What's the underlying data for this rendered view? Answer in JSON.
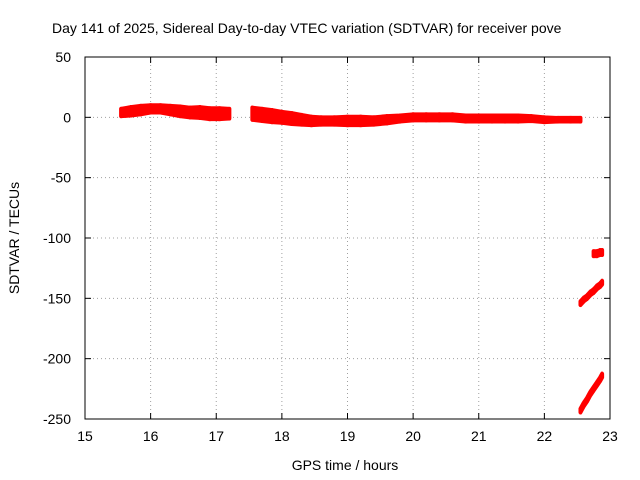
{
  "chart_data": {
    "type": "scatter",
    "title": "Day 141 of 2025, Sidereal Day-to-day VTEC variation (SDTVAR) for receiver pove",
    "xlabel": "GPS time / hours",
    "ylabel": "SDTVAR / TECUs",
    "xlim": [
      15,
      23
    ],
    "ylim": [
      -250,
      50
    ],
    "xticks": [
      15,
      16,
      17,
      18,
      19,
      20,
      21,
      22,
      23
    ],
    "yticks": [
      -250,
      -200,
      -150,
      -100,
      -50,
      0,
      50
    ],
    "grid": true,
    "legend": "none",
    "series_color": "#ff0000",
    "series": [
      {
        "x": [
          15.55,
          15.7,
          15.85,
          16.0,
          16.15,
          16.3,
          16.45,
          16.6,
          16.75,
          16.9,
          17.05,
          17.2
        ],
        "y": [
          4,
          5,
          6,
          7,
          7,
          6,
          5,
          4,
          4,
          3,
          3,
          3
        ],
        "spread": [
          6,
          7,
          7,
          6,
          6,
          7,
          8,
          8,
          9,
          9,
          9,
          8
        ]
      },
      {
        "x": [
          17.55,
          17.7,
          17.85,
          18.0,
          18.15,
          18.3,
          18.45,
          18.6,
          18.8,
          19.0,
          19.2,
          19.4,
          19.6,
          19.8,
          20.0,
          20.2,
          20.4,
          20.6,
          20.8,
          21.0,
          21.2,
          21.4,
          21.6,
          21.8,
          22.0,
          22.2,
          22.4,
          22.55
        ],
        "y": [
          3,
          2,
          1,
          0,
          -1,
          -2,
          -3,
          -3,
          -3,
          -3,
          -3,
          -3,
          -2,
          -1,
          0,
          0,
          0,
          0,
          -1,
          -1,
          -1,
          -1,
          -1,
          -1,
          -2,
          -2,
          -2,
          -2
        ],
        "spread": [
          10,
          10,
          10,
          9,
          9,
          8,
          7,
          6,
          6,
          7,
          7,
          6,
          6,
          5,
          5,
          5,
          5,
          5,
          5,
          5,
          5,
          5,
          5,
          4,
          4,
          3,
          3,
          3
        ]
      },
      {
        "x": [
          22.75,
          22.8,
          22.85,
          22.88
        ],
        "y": [
          -113,
          -113,
          -112,
          -112
        ],
        "spread": [
          4,
          4,
          4,
          4
        ]
      },
      {
        "x": [
          22.55,
          22.6,
          22.65,
          22.7,
          22.75,
          22.8,
          22.85,
          22.88
        ],
        "y": [
          -154,
          -151,
          -149,
          -146,
          -144,
          -141,
          -139,
          -137
        ],
        "spread": [
          3,
          3,
          3,
          3,
          3,
          3,
          3,
          3
        ]
      },
      {
        "x": [
          22.55,
          22.6,
          22.65,
          22.7,
          22.75,
          22.8,
          22.85,
          22.88
        ],
        "y": [
          -243,
          -238,
          -234,
          -229,
          -225,
          -221,
          -217,
          -214
        ],
        "spread": [
          3,
          3,
          3,
          3,
          3,
          3,
          3,
          3
        ]
      }
    ]
  }
}
